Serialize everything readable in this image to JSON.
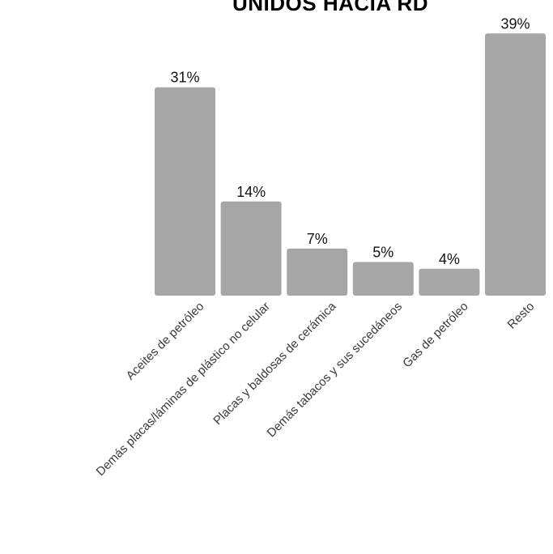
{
  "chart_data": {
    "type": "bar",
    "title": "UNIDOS HACIA RD",
    "categories": [
      "Aceites de petróleo",
      "Demás placas/láminas de plástico no celular",
      "Placas y baldosas de cerámica",
      "Demás tabacos y sus sucedáneos",
      "Gas de petróleo",
      "Resto"
    ],
    "values": [
      31,
      14,
      7,
      5,
      4,
      39
    ],
    "value_labels": [
      "31%",
      "14%",
      "7%",
      "5%",
      "4%",
      "39%"
    ],
    "unit": "%",
    "ylim": [
      0,
      40
    ],
    "grid": false,
    "bar_color": "#a6a6a6"
  }
}
